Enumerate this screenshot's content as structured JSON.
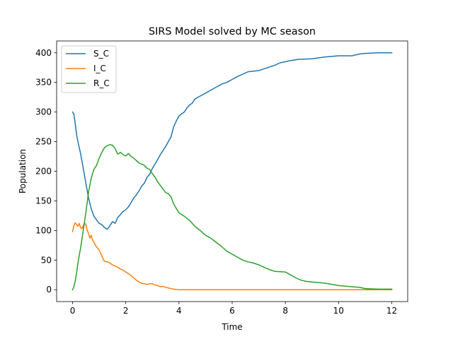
{
  "chart_data": {
    "type": "line",
    "title": "SIRS Model solved by MC season",
    "xlabel": "Time",
    "ylabel": "Population",
    "xlim": [
      -0.6,
      12.6
    ],
    "ylim": [
      -20,
      420
    ],
    "xticks": [
      0,
      2,
      4,
      6,
      8,
      10,
      12
    ],
    "yticks": [
      0,
      50,
      100,
      150,
      200,
      250,
      300,
      350,
      400
    ],
    "grid": false,
    "legend_position": "upper-left",
    "series": [
      {
        "name": "S_C",
        "color": "#1f77b4",
        "points": [
          [
            0,
            300
          ],
          [
            0.05,
            296
          ],
          [
            0.1,
            280
          ],
          [
            0.15,
            262
          ],
          [
            0.2,
            250
          ],
          [
            0.3,
            230
          ],
          [
            0.4,
            205
          ],
          [
            0.5,
            180
          ],
          [
            0.6,
            155
          ],
          [
            0.7,
            137
          ],
          [
            0.8,
            124
          ],
          [
            0.9,
            118
          ],
          [
            1.0,
            112
          ],
          [
            1.1,
            110
          ],
          [
            1.2,
            105
          ],
          [
            1.3,
            102
          ],
          [
            1.4,
            108
          ],
          [
            1.5,
            115
          ],
          [
            1.6,
            112
          ],
          [
            1.7,
            122
          ],
          [
            1.8,
            127
          ],
          [
            1.9,
            132
          ],
          [
            2.0,
            135
          ],
          [
            2.1,
            140
          ],
          [
            2.2,
            147
          ],
          [
            2.3,
            155
          ],
          [
            2.4,
            160
          ],
          [
            2.5,
            167
          ],
          [
            2.6,
            175
          ],
          [
            2.7,
            180
          ],
          [
            2.8,
            190
          ],
          [
            2.9,
            195
          ],
          [
            3.0,
            205
          ],
          [
            3.1,
            212
          ],
          [
            3.2,
            220
          ],
          [
            3.3,
            228
          ],
          [
            3.4,
            235
          ],
          [
            3.5,
            242
          ],
          [
            3.6,
            250
          ],
          [
            3.7,
            258
          ],
          [
            3.8,
            275
          ],
          [
            3.9,
            285
          ],
          [
            4.0,
            293
          ],
          [
            4.1,
            297
          ],
          [
            4.2,
            300
          ],
          [
            4.3,
            307
          ],
          [
            4.4,
            312
          ],
          [
            4.5,
            315
          ],
          [
            4.6,
            322
          ],
          [
            4.8,
            327
          ],
          [
            5.0,
            332
          ],
          [
            5.2,
            337
          ],
          [
            5.4,
            342
          ],
          [
            5.6,
            347
          ],
          [
            5.8,
            350
          ],
          [
            6.0,
            355
          ],
          [
            6.2,
            360
          ],
          [
            6.4,
            364
          ],
          [
            6.6,
            368
          ],
          [
            6.8,
            369
          ],
          [
            7.0,
            370
          ],
          [
            7.2,
            373
          ],
          [
            7.4,
            376
          ],
          [
            7.6,
            379
          ],
          [
            7.8,
            383
          ],
          [
            8.0,
            385
          ],
          [
            8.2,
            387
          ],
          [
            8.5,
            389
          ],
          [
            9.0,
            390
          ],
          [
            9.5,
            393
          ],
          [
            10.0,
            395
          ],
          [
            10.5,
            395
          ],
          [
            10.8,
            398
          ],
          [
            11.0,
            399
          ],
          [
            11.5,
            400
          ],
          [
            12.0,
            400
          ]
        ]
      },
      {
        "name": "I_C",
        "color": "#ff7f0e",
        "points": [
          [
            0,
            98
          ],
          [
            0.05,
            108
          ],
          [
            0.1,
            113
          ],
          [
            0.15,
            110
          ],
          [
            0.2,
            107
          ],
          [
            0.25,
            112
          ],
          [
            0.3,
            105
          ],
          [
            0.35,
            103
          ],
          [
            0.4,
            108
          ],
          [
            0.45,
            113
          ],
          [
            0.5,
            110
          ],
          [
            0.55,
            100
          ],
          [
            0.6,
            95
          ],
          [
            0.65,
            87
          ],
          [
            0.7,
            92
          ],
          [
            0.75,
            84
          ],
          [
            0.8,
            80
          ],
          [
            0.85,
            76
          ],
          [
            0.9,
            72
          ],
          [
            0.95,
            70
          ],
          [
            1.0,
            67
          ],
          [
            1.05,
            62
          ],
          [
            1.1,
            57
          ],
          [
            1.15,
            52
          ],
          [
            1.2,
            48
          ],
          [
            1.3,
            47
          ],
          [
            1.4,
            45
          ],
          [
            1.5,
            42
          ],
          [
            1.6,
            40
          ],
          [
            1.7,
            38
          ],
          [
            1.8,
            35
          ],
          [
            1.9,
            33
          ],
          [
            2.0,
            30
          ],
          [
            2.1,
            27
          ],
          [
            2.2,
            24
          ],
          [
            2.3,
            20
          ],
          [
            2.4,
            16
          ],
          [
            2.5,
            13
          ],
          [
            2.6,
            11
          ],
          [
            2.7,
            10
          ],
          [
            2.8,
            9
          ],
          [
            2.9,
            10
          ],
          [
            3.0,
            10
          ],
          [
            3.1,
            8
          ],
          [
            3.2,
            7
          ],
          [
            3.3,
            5
          ],
          [
            3.4,
            6
          ],
          [
            3.5,
            4
          ],
          [
            3.6,
            3
          ],
          [
            3.7,
            2
          ],
          [
            3.8,
            1
          ],
          [
            4.0,
            0
          ],
          [
            12.0,
            0
          ]
        ]
      },
      {
        "name": "R_C",
        "color": "#2ca02c",
        "points": [
          [
            0,
            0
          ],
          [
            0.05,
            5
          ],
          [
            0.1,
            15
          ],
          [
            0.15,
            28
          ],
          [
            0.2,
            45
          ],
          [
            0.3,
            70
          ],
          [
            0.4,
            100
          ],
          [
            0.5,
            130
          ],
          [
            0.6,
            165
          ],
          [
            0.7,
            188
          ],
          [
            0.8,
            203
          ],
          [
            0.9,
            210
          ],
          [
            1.0,
            222
          ],
          [
            1.1,
            232
          ],
          [
            1.2,
            240
          ],
          [
            1.3,
            243
          ],
          [
            1.4,
            245
          ],
          [
            1.5,
            244
          ],
          [
            1.6,
            238
          ],
          [
            1.7,
            229
          ],
          [
            1.8,
            232
          ],
          [
            1.9,
            228
          ],
          [
            2.0,
            226
          ],
          [
            2.1,
            230
          ],
          [
            2.2,
            225
          ],
          [
            2.3,
            222
          ],
          [
            2.4,
            218
          ],
          [
            2.5,
            214
          ],
          [
            2.6,
            212
          ],
          [
            2.7,
            210
          ],
          [
            2.8,
            205
          ],
          [
            2.9,
            203
          ],
          [
            3.0,
            196
          ],
          [
            3.1,
            190
          ],
          [
            3.2,
            182
          ],
          [
            3.3,
            176
          ],
          [
            3.4,
            170
          ],
          [
            3.5,
            164
          ],
          [
            3.6,
            162
          ],
          [
            3.7,
            157
          ],
          [
            3.8,
            145
          ],
          [
            3.9,
            137
          ],
          [
            4.0,
            130
          ],
          [
            4.2,
            124
          ],
          [
            4.4,
            117
          ],
          [
            4.6,
            107
          ],
          [
            4.8,
            100
          ],
          [
            5.0,
            92
          ],
          [
            5.2,
            87
          ],
          [
            5.4,
            80
          ],
          [
            5.6,
            73
          ],
          [
            5.8,
            65
          ],
          [
            6.0,
            60
          ],
          [
            6.2,
            55
          ],
          [
            6.4,
            50
          ],
          [
            6.6,
            47
          ],
          [
            6.8,
            45
          ],
          [
            7.0,
            42
          ],
          [
            7.2,
            38
          ],
          [
            7.4,
            34
          ],
          [
            7.6,
            31
          ],
          [
            8.0,
            30
          ],
          [
            8.2,
            25
          ],
          [
            8.4,
            20
          ],
          [
            8.6,
            16
          ],
          [
            8.8,
            14
          ],
          [
            9.0,
            13
          ],
          [
            9.5,
            11
          ],
          [
            10.0,
            7
          ],
          [
            10.5,
            5
          ],
          [
            10.8,
            4
          ],
          [
            11.0,
            2
          ],
          [
            11.5,
            1
          ],
          [
            12.0,
            1
          ]
        ]
      }
    ]
  }
}
